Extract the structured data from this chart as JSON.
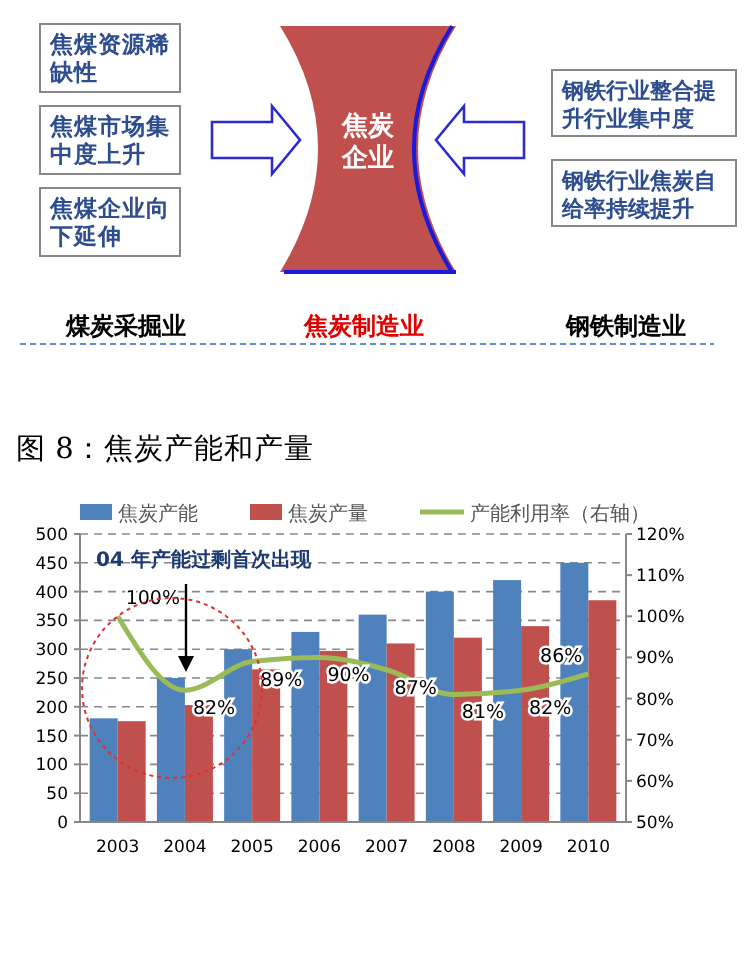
{
  "chart_data": [
    {
      "type": "other",
      "annotations": [
        "焦煤资源稀缺性",
        "焦煤市场集中度上升",
        "焦煤企业向下延伸",
        "焦炭企业",
        "钢铁行业整合提升行业集中度",
        "钢铁行业焦炭自给率持续提升",
        "煤炭采掘业",
        "焦炭制造业",
        "钢铁制造业"
      ]
    },
    {
      "type": "bar",
      "title": "图 8：焦炭产能和产量",
      "categories": [
        "2003",
        "2004",
        "2005",
        "2006",
        "2007",
        "2008",
        "2009",
        "2010"
      ],
      "series": [
        {
          "name": "焦炭产能",
          "color": "#4f81bd",
          "values": [
            180,
            250,
            300,
            330,
            360,
            400,
            420,
            450
          ]
        },
        {
          "name": "焦炭产量",
          "color": "#c0504d",
          "values": [
            175,
            203,
            265,
            297,
            310,
            320,
            340,
            385
          ]
        },
        {
          "name": "产能利用率（右轴）",
          "type": "line",
          "axis": "y2",
          "color": "#9bbb59",
          "values": [
            100,
            82,
            89,
            90,
            87,
            81,
            82,
            86
          ],
          "value_labels": [
            "100%",
            "82%",
            "89%",
            "90%",
            "87%",
            "81%",
            "82%",
            "86%"
          ]
        }
      ],
      "ylim": [
        0,
        500
      ],
      "yticks": [
        0,
        50,
        100,
        150,
        200,
        250,
        300,
        350,
        400,
        450,
        500
      ],
      "y2lim": [
        50,
        120
      ],
      "y2ticks": [
        {
          "value": 50,
          "label": "50%"
        },
        {
          "value": 60,
          "label": "60%"
        },
        {
          "value": 70,
          "label": "70%"
        },
        {
          "value": 80,
          "label": "80%"
        },
        {
          "value": 90,
          "label": "90%"
        },
        {
          "value": 100,
          "label": "100%"
        },
        {
          "value": 110,
          "label": "110%"
        },
        {
          "value": 120,
          "label": "120%"
        }
      ],
      "grid": "y",
      "legend": "top",
      "marker": "none",
      "annotations": [
        "04 年产能过剩首次出现"
      ]
    }
  ]
}
